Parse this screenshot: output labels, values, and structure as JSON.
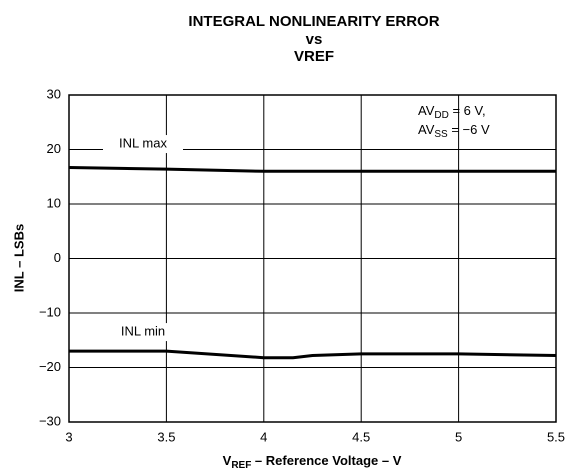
{
  "chart_data": {
    "type": "line",
    "title": [
      "INTEGRAL NONLINEARITY ERROR",
      "vs",
      "VREF"
    ],
    "x_label": {
      "main": "V",
      "sub": "REF",
      "rest": " – Reference Voltage – V"
    },
    "y_label": "INL – LSBs",
    "annotation": [
      {
        "main": "AV",
        "sub": "DD",
        "rest": " = 6 V,"
      },
      {
        "main": "AV",
        "sub": "SS",
        "rest": " = −6 V"
      }
    ],
    "series": [
      {
        "name": "INL max",
        "color": "#000000",
        "x": [
          3,
          3.5,
          4,
          4.5,
          5,
          5.5
        ],
        "values": [
          16.7,
          16.4,
          16.0,
          16.0,
          16.0,
          16.0
        ]
      },
      {
        "name": "INL min",
        "color": "#000000",
        "x": [
          3,
          3.5,
          4,
          4.15,
          4.25,
          4.5,
          5,
          5.5
        ],
        "values": [
          -17.0,
          -17.0,
          -18.2,
          -18.2,
          -17.8,
          -17.5,
          -17.5,
          -17.8
        ]
      }
    ],
    "xlim": [
      3,
      5.5
    ],
    "xticks": [
      3,
      3.5,
      4,
      4.5,
      5,
      5.5
    ],
    "ylim": [
      -30,
      30
    ],
    "yticks": [
      {
        "value": -30,
        "label": "−30"
      },
      {
        "value": -20,
        "label": "−20"
      },
      {
        "value": -10,
        "label": "−10"
      },
      0,
      10,
      20,
      30
    ],
    "grid": true
  }
}
